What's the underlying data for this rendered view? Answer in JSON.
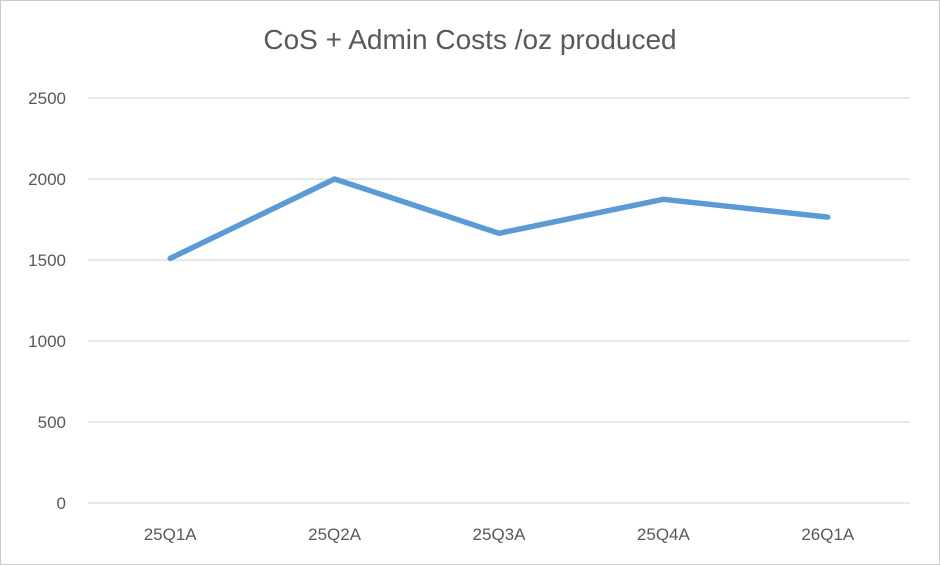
{
  "chart_data": {
    "type": "line",
    "title": "CoS + Admin Costs /oz produced",
    "categories": [
      "25Q1A",
      "25Q2A",
      "25Q3A",
      "25Q4A",
      "26Q1A"
    ],
    "series": [
      {
        "values": [
          1510,
          2000,
          1665,
          1875,
          1765
        ]
      }
    ],
    "ylim": [
      0,
      2500
    ],
    "yticks": [
      "0",
      "500",
      "1000",
      "1500",
      "2000",
      "2500"
    ],
    "grid": true,
    "legend": "none",
    "colors": {
      "line": "#5b9bd5",
      "grid": "#d9d9d9",
      "text": "#595959"
    }
  }
}
